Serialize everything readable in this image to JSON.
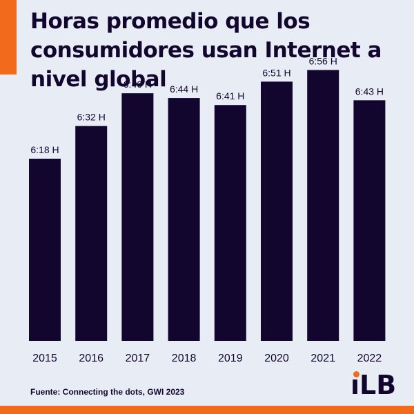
{
  "title": "Horas promedio que los consumidores usan Internet a nivel global",
  "source": "Fuente: Connecting the dots, GWI 2023",
  "logo": {
    "text": "iLB",
    "stem": "ı",
    "rest": "LB"
  },
  "colors": {
    "background": "#e8edf5",
    "bar": "#12062f",
    "accent": "#f26a1b",
    "text": "#12062f"
  },
  "chart_data": {
    "type": "bar",
    "title": "Horas promedio que los consumidores usan Internet a nivel global",
    "categories": [
      "2015",
      "2016",
      "2017",
      "2018",
      "2019",
      "2020",
      "2021",
      "2022"
    ],
    "values": [
      6.3,
      6.533,
      6.767,
      6.733,
      6.683,
      6.85,
      6.933,
      6.717
    ],
    "value_units": "hours",
    "data_labels": [
      "6:18 H",
      "6:32 H",
      "6:46 H",
      "6:44 H",
      "6:41 H",
      "6:51 H",
      "6:56 H",
      "6:43 H"
    ],
    "xlabel": "",
    "ylabel": "",
    "y_axis_visible": false,
    "grid": false,
    "legend": false
  }
}
